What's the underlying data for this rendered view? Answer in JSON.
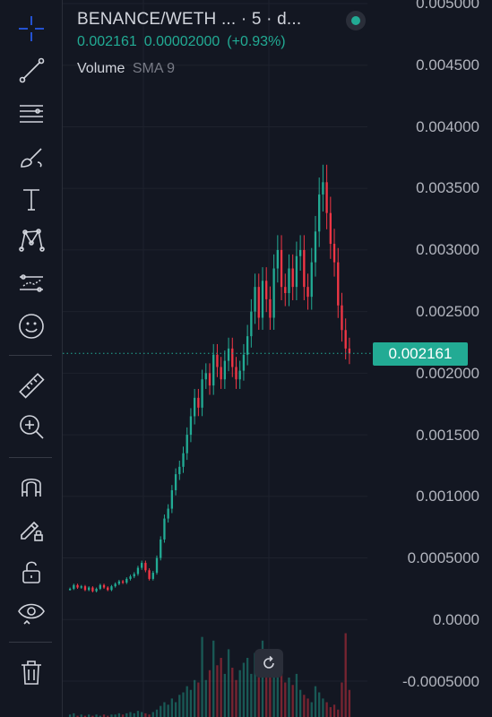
{
  "legend": {
    "symbol": "BENANCE/WETH ... · 5 · d...",
    "price": "0.002161",
    "change": "0.00002000",
    "change_pct": "(+0.93%)",
    "volume_label": "Volume",
    "sma_label": "SMA 9"
  },
  "price_axis": {
    "labels": [
      "0.005000",
      "0.004500",
      "0.004000",
      "0.003500",
      "0.003000",
      "0.002500",
      "0.002000",
      "0.001500",
      "0.001000",
      "0.0005000",
      "0.0000",
      "-0.0005000"
    ],
    "current_price_tag": "0.002161"
  },
  "toolbar": {
    "tools": [
      "crosshair-icon",
      "trend-line-icon",
      "horizontal-lines-icon",
      "brush-icon",
      "text-icon",
      "pattern-icon",
      "forecast-icon",
      "emoji-icon",
      "ruler-icon",
      "zoom-in-icon",
      "magnet-icon",
      "lock-drawing-icon",
      "unlock-icon",
      "eye-icon",
      "trash-icon"
    ]
  },
  "colors": {
    "background": "#131722",
    "up": "#22ab94",
    "down": "#f23645",
    "grid": "#1e222d",
    "text": "#d1d4dc"
  },
  "chart_data": {
    "type": "candlestick",
    "ylim": [
      -0.0005,
      0.005
    ],
    "last_price": 0.002161,
    "values": [
      0.00025,
      0.00028,
      0.00026,
      0.00027,
      0.00024,
      0.00026,
      0.00023,
      0.00025,
      0.00028,
      0.00026,
      0.00024,
      0.00027,
      0.00029,
      0.00031,
      0.0003,
      0.00033,
      0.00035,
      0.00037,
      0.00042,
      0.00046,
      0.0004,
      0.00033,
      0.00038,
      0.0005,
      0.00065,
      0.00082,
      0.0009,
      0.00105,
      0.00118,
      0.00124,
      0.00135,
      0.0015,
      0.00165,
      0.0018,
      0.00172,
      0.00195,
      0.002,
      0.0019,
      0.00215,
      0.00205,
      0.00195,
      0.0021,
      0.0022,
      0.00205,
      0.00195,
      0.00202,
      0.00215,
      0.0023,
      0.0025,
      0.0027,
      0.00245,
      0.00275,
      0.0026,
      0.00245,
      0.00285,
      0.003,
      0.0027,
      0.00265,
      0.00285,
      0.0027,
      0.00295,
      0.003,
      0.0027,
      0.00262,
      0.0029,
      0.00315,
      0.00345,
      0.00355,
      0.0033,
      0.00305,
      0.0029,
      0.00255,
      0.00235,
      0.0022,
      0.00216
    ],
    "volumes": [
      2e-05,
      3e-05,
      1e-05,
      2e-05,
      1e-05,
      2e-05,
      1e-05,
      2e-05,
      1e-05,
      2e-05,
      1e-05,
      2e-05,
      2e-05,
      3e-05,
      2e-05,
      3e-05,
      4e-05,
      3e-05,
      5e-05,
      4e-05,
      3e-05,
      2e-05,
      4e-05,
      6e-05,
      9e-05,
      0.00012,
      0.0001,
      0.00015,
      0.00012,
      0.00018,
      0.0002,
      0.00025,
      0.00022,
      0.0003,
      0.00028,
      0.00065,
      0.0003,
      0.00038,
      0.00062,
      0.00042,
      0.00048,
      0.00035,
      0.00055,
      0.0004,
      0.0003,
      0.00038,
      0.00044,
      0.00048,
      0.00035,
      0.00052,
      0.00045,
      0.00062,
      0.0004,
      0.00038,
      0.00046,
      0.00041,
      0.00035,
      0.00028,
      0.00032,
      0.00026,
      0.00035,
      0.00022,
      0.00018,
      0.00015,
      0.00012,
      0.00025,
      0.0002,
      0.00015,
      0.00012,
      8e-05,
      0.0001,
      6e-05,
      0.00028,
      0.00068,
      0.00022
    ]
  }
}
